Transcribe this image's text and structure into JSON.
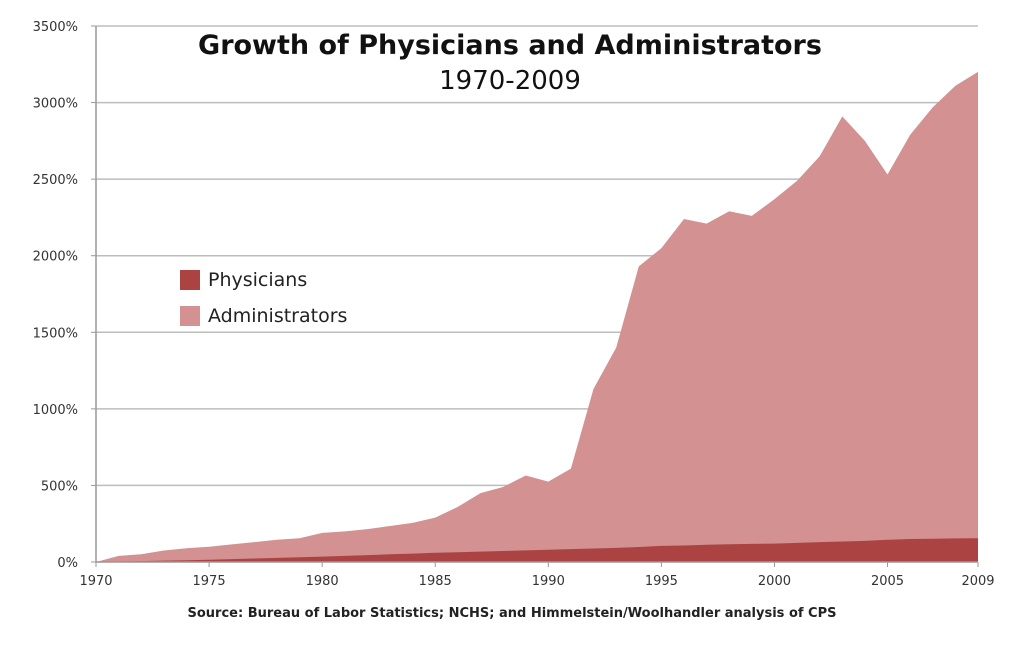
{
  "chart_data": {
    "type": "area",
    "title": "Growth of Physicians and Administrators",
    "subtitle": "1970-2009",
    "xlabel": "",
    "ylabel": "",
    "x": [
      1970,
      1971,
      1972,
      1973,
      1974,
      1975,
      1976,
      1977,
      1978,
      1979,
      1980,
      1981,
      1982,
      1983,
      1984,
      1985,
      1986,
      1987,
      1988,
      1989,
      1990,
      1991,
      1992,
      1993,
      1994,
      1995,
      1996,
      1997,
      1998,
      1999,
      2000,
      2001,
      2002,
      2003,
      2004,
      2005,
      2006,
      2007,
      2008,
      2009
    ],
    "series": [
      {
        "name": "Administrators",
        "color": "#d39191",
        "values": [
          0,
          40,
          50,
          75,
          90,
          100,
          115,
          130,
          145,
          155,
          190,
          200,
          215,
          235,
          255,
          290,
          360,
          450,
          490,
          565,
          525,
          610,
          1130,
          1400,
          1930,
          2050,
          2240,
          2210,
          2290,
          2260,
          2370,
          2490,
          2650,
          2910,
          2750,
          2530,
          2790,
          2970,
          3110,
          3200
        ]
      },
      {
        "name": "Physicians",
        "color": "#ac4343",
        "values": [
          0,
          3,
          6,
          9,
          12,
          15,
          19,
          23,
          27,
          31,
          35,
          40,
          45,
          50,
          55,
          60,
          64,
          68,
          72,
          76,
          80,
          84,
          88,
          92,
          98,
          105,
          108,
          112,
          116,
          118,
          120,
          125,
          130,
          134,
          138,
          145,
          150,
          152,
          154,
          155
        ]
      }
    ],
    "xticks": [
      "1970",
      "1975",
      "1980",
      "1985",
      "1990",
      "1995",
      "2000",
      "2005",
      "2009"
    ],
    "yticks": [
      "0%",
      "500%",
      "1000%",
      "1500%",
      "2000%",
      "2500%",
      "3000%",
      "3500%"
    ],
    "ylim": [
      0,
      3500
    ],
    "xlim": [
      1970,
      2009
    ],
    "grid": true,
    "legend_position": "left-middle",
    "source": "Source: Bureau of Labor Statistics; NCHS; and Himmelstein/Woolhandler analysis of CPS"
  }
}
